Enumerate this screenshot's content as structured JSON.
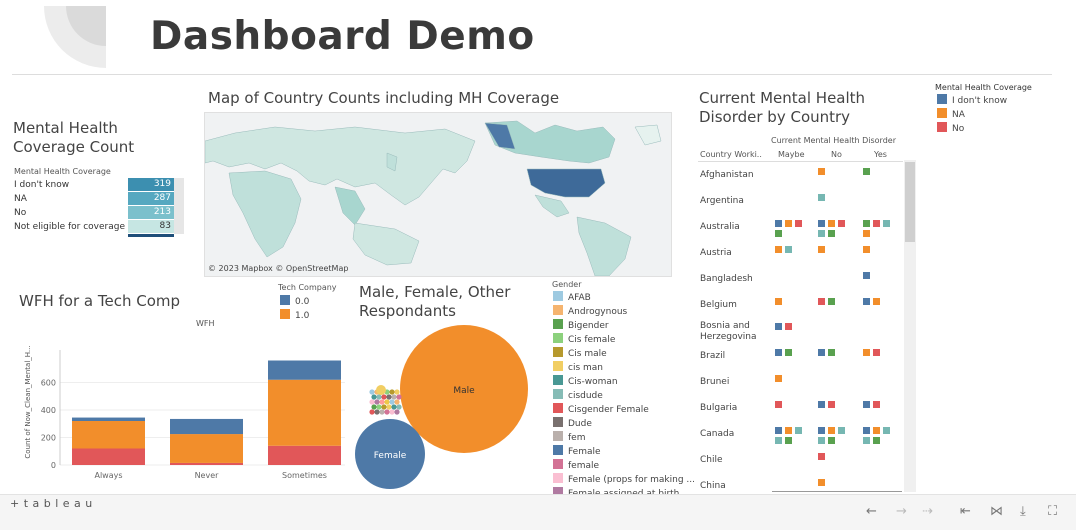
{
  "title": "Dashboard Demo",
  "coverage": {
    "title": "Mental Health Coverage Count",
    "header": "Mental Health Coverage",
    "rows": [
      {
        "label": "I don't know",
        "value": "319",
        "color": "#3c8fb0"
      },
      {
        "label": "NA",
        "value": "287",
        "color": "#56a8c0"
      },
      {
        "label": "No",
        "value": "213",
        "color": "#7bc0cc"
      },
      {
        "label": "Not eligible for coverage",
        "value": "83",
        "color": "#c6e6e3"
      }
    ]
  },
  "map": {
    "title": "Map of Country Counts including MH Coverage",
    "attribution": "© 2023 Mapbox  © OpenStreetMap"
  },
  "wfh": {
    "title": "WFH for a Tech Comp",
    "legend_title": "Tech Company",
    "legend": [
      {
        "label": "0.0",
        "color": "#4e79a7"
      },
      {
        "label": "1.0",
        "color": "#f28e2b"
      }
    ],
    "chart_title": "WFH",
    "ylabel": "Count of Now_Clean_Mental_H...",
    "chart_data": {
      "type": "bar",
      "categories": [
        "Always",
        "Never",
        "Sometimes"
      ],
      "series": [
        {
          "name": "",
          "color": "#e15759",
          "values": [
            120,
            15,
            140
          ]
        },
        {
          "name": "1.0",
          "color": "#f28e2b",
          "values": [
            200,
            210,
            480
          ]
        },
        {
          "name": "0.0",
          "color": "#4e79a7",
          "values": [
            25,
            110,
            140
          ]
        }
      ],
      "yticks": [
        "0",
        "200",
        "400",
        "600"
      ],
      "ylim": [
        0,
        800
      ]
    }
  },
  "gender": {
    "title": "Male, Female, Other Respondants",
    "legend_title": "Gender",
    "legend": [
      {
        "label": "AFAB",
        "color": "#9ecae1"
      },
      {
        "label": "Androgynous",
        "color": "#f5b46f"
      },
      {
        "label": "Bigender",
        "color": "#59a14f"
      },
      {
        "label": "Cis female",
        "color": "#8cd17d"
      },
      {
        "label": "Cis male",
        "color": "#b6992d"
      },
      {
        "label": "cis man",
        "color": "#f1ce63"
      },
      {
        "label": "Cis-woman",
        "color": "#499894"
      },
      {
        "label": "cisdude",
        "color": "#86bcb6"
      },
      {
        "label": "Cisgender Female",
        "color": "#e15759"
      },
      {
        "label": "Dude",
        "color": "#79706e"
      },
      {
        "label": "fem",
        "color": "#bab0ac"
      },
      {
        "label": "Female",
        "color": "#4e79a7"
      },
      {
        "label": "female",
        "color": "#d37295"
      },
      {
        "label": "Female (props for making ...",
        "color": "#fabfd2"
      },
      {
        "label": "Female assigned at birth",
        "color": "#b07aa1"
      }
    ],
    "bubbles": {
      "male": "Male",
      "female": "Female"
    }
  },
  "disorder": {
    "title": "Current Mental Health Disorder by Country",
    "col_header": "Current Mental Health Disorder",
    "row_header": "Country Worki..",
    "columns": [
      "Maybe",
      "No",
      "Yes"
    ],
    "countries": [
      "Afghanistan",
      "Argentina",
      "Australia",
      "Austria",
      "Bangladesh",
      "Belgium",
      "Bosnia and Herzegovina",
      "Brazil",
      "Brunei",
      "Bulgaria",
      "Canada",
      "Chile",
      "China"
    ]
  },
  "coverage_legend": {
    "title": "Mental Health Coverage",
    "items": [
      {
        "label": "I don't know",
        "color": "#4e79a7"
      },
      {
        "label": "NA",
        "color": "#f28e2b"
      },
      {
        "label": "No",
        "color": "#e15759"
      }
    ]
  },
  "footer": {
    "brand": "+ t a b l e a u"
  }
}
